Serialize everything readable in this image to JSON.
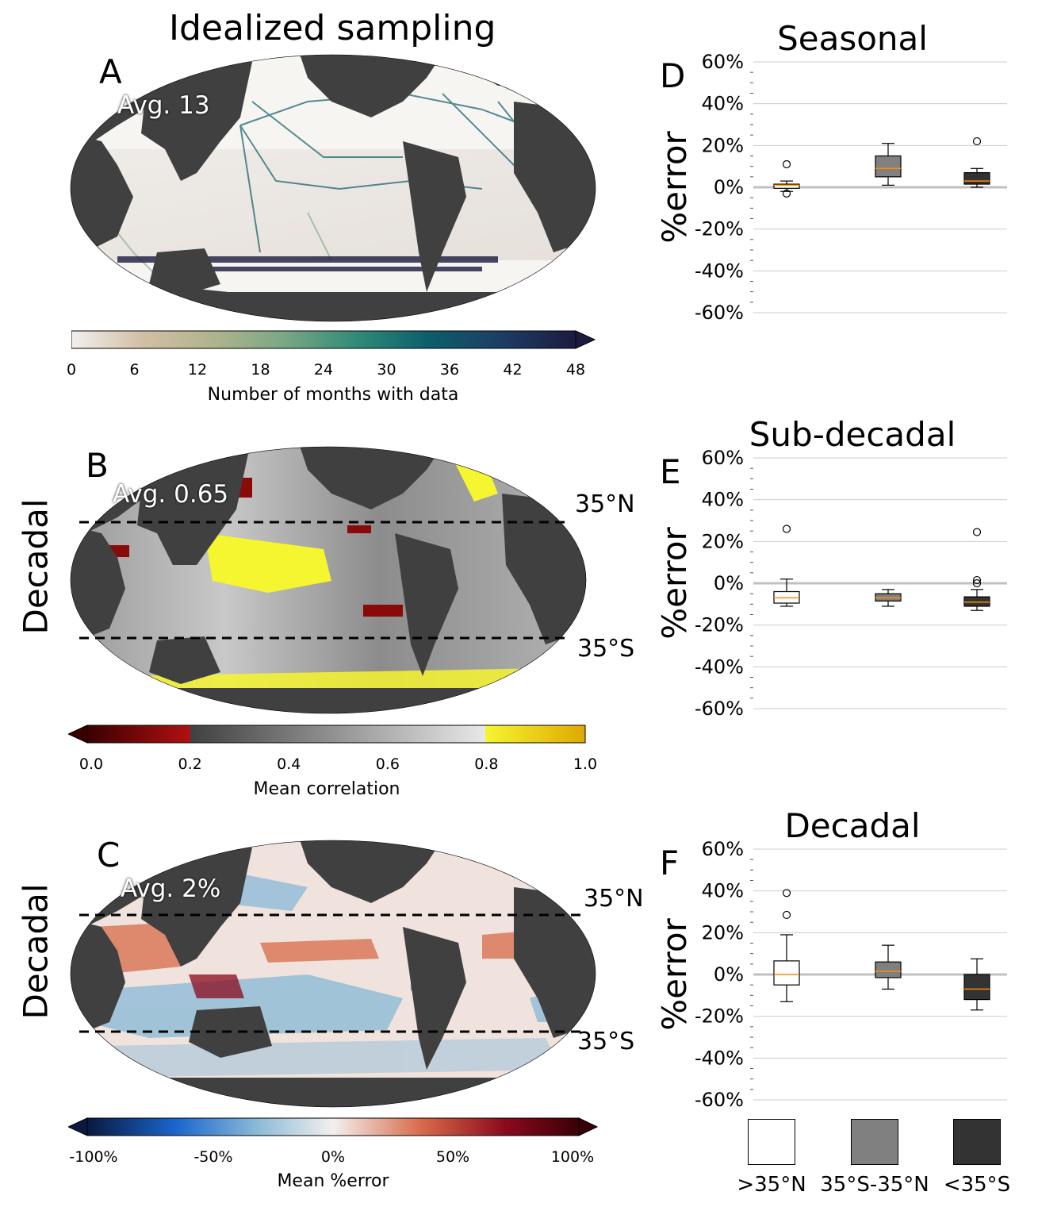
{
  "figure": {
    "title": "Idealized sampling",
    "row_labels": [
      "Decadal",
      "Decadal"
    ],
    "maps": [
      {
        "letter": "A",
        "avg_label": "Avg. 13",
        "colorbar": {
          "label": "Number of months with data",
          "ticks": [
            "0",
            "6",
            "12",
            "18",
            "24",
            "30",
            "36",
            "42",
            "48"
          ],
          "colors": [
            "#f2f0ee",
            "#d2bfa4",
            "#b0b48e",
            "#7aa883",
            "#2f8a78",
            "#0b5e6a",
            "#1d3e64",
            "#1b1b3f"
          ]
        },
        "lat_lines": []
      },
      {
        "letter": "B",
        "avg_label": "Avg. 0.65",
        "colorbar": {
          "label": "Mean correlation",
          "ticks": [
            "0.0",
            "0.2",
            "0.4",
            "0.6",
            "0.8",
            "1.0"
          ],
          "colors": [
            "#3a0000",
            "#b01010",
            "#404040",
            "#e8e8e8",
            "#f5f530",
            "#e0a800"
          ]
        },
        "lat_lines": [
          "35°N",
          "35°S"
        ]
      },
      {
        "letter": "C",
        "avg_label": "Avg. 2%",
        "colorbar": {
          "label": "Mean %error",
          "ticks": [
            "-100%",
            "-50%",
            "0%",
            "50%",
            "100%"
          ],
          "colors": [
            "#0a1940",
            "#1a66cc",
            "#8ebcd8",
            "#f2f0ee",
            "#d86a4a",
            "#8a0a1c",
            "#3a0008"
          ]
        },
        "lat_lines": [
          "35°N",
          "35°S"
        ]
      }
    ]
  },
  "chart_data": [
    {
      "type": "box",
      "letter": "D",
      "title": "Seasonal",
      "ylabel": "%error",
      "ylim": [
        -65,
        65
      ],
      "yticks": [
        "60%",
        "40%",
        "20%",
        "0%",
        "-20%",
        "-40%",
        "-60%"
      ],
      "categories": [
        ">35°N",
        "35°S-35°N",
        "<35°S"
      ],
      "boxes": [
        {
          "whislo": -2,
          "q1": -0.5,
          "med": 1,
          "q3": 1.5,
          "whishi": 3,
          "fliers": [
            -3,
            11
          ]
        },
        {
          "whislo": 1,
          "q1": 5,
          "med": 9,
          "q3": 15,
          "whishi": 21,
          "fliers": []
        },
        {
          "whislo": 0,
          "q1": 1.5,
          "med": 3,
          "q3": 7,
          "whishi": 9,
          "fliers": [
            22
          ]
        }
      ]
    },
    {
      "type": "box",
      "letter": "E",
      "title": "Sub-decadal",
      "ylabel": "%error",
      "ylim": [
        -65,
        65
      ],
      "yticks": [
        "60%",
        "40%",
        "20%",
        "0%",
        "-20%",
        "-40%",
        "-60%"
      ],
      "categories": [
        ">35°N",
        "35°S-35°N",
        "<35°S"
      ],
      "boxes": [
        {
          "whislo": -11,
          "q1": -9.5,
          "med": -7,
          "q3": -4,
          "whishi": 2,
          "fliers": [
            26
          ]
        },
        {
          "whislo": -11,
          "q1": -8.5,
          "med": -7,
          "q3": -5,
          "whishi": -3,
          "fliers": []
        },
        {
          "whislo": -13,
          "q1": -11,
          "med": -9,
          "q3": -6.5,
          "whishi": -3,
          "fliers": [
            0,
            1.5,
            24.5
          ]
        }
      ]
    },
    {
      "type": "box",
      "letter": "F",
      "title": "Decadal",
      "ylabel": "%error",
      "ylim": [
        -65,
        65
      ],
      "yticks": [
        "60%",
        "40%",
        "20%",
        "0%",
        "-20%",
        "-40%",
        "-60%"
      ],
      "categories": [
        ">35°N",
        "35°S-35°N",
        "<35°S"
      ],
      "boxes": [
        {
          "whislo": -13,
          "q1": -5,
          "med": 0,
          "q3": 6.5,
          "whishi": 19,
          "fliers": [
            28.5,
            39
          ]
        },
        {
          "whislo": -7,
          "q1": -1.5,
          "med": 1.5,
          "q3": 6,
          "whishi": 14,
          "fliers": []
        },
        {
          "whislo": -17,
          "q1": -12,
          "med": -7,
          "q3": 0,
          "whishi": 7.5,
          "fliers": []
        }
      ]
    }
  ],
  "legend": {
    "items": [
      {
        "label": ">35°N",
        "color": "#ffffff"
      },
      {
        "label": "35°S-35°N",
        "color": "#808080"
      },
      {
        "label": "<35°S",
        "color": "#333333"
      }
    ]
  },
  "colors": {
    "land": "#404040",
    "median": "#ff8c00",
    "gridline": "#cccccc",
    "zeroline": "#c0c0c0"
  }
}
